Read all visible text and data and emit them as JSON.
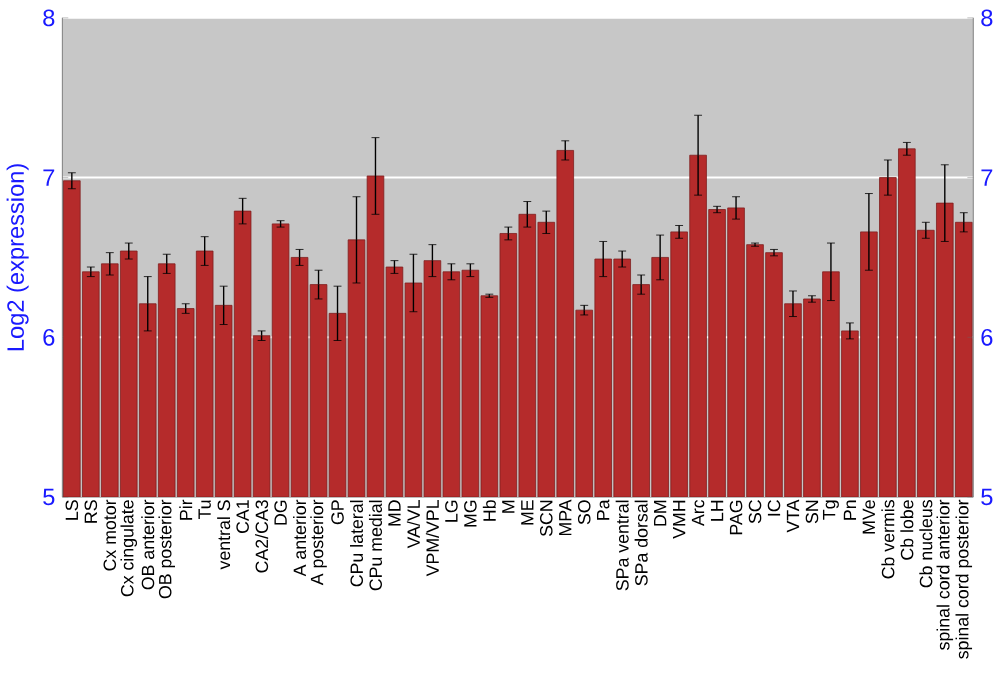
{
  "chart_data": {
    "type": "bar",
    "ylabel": "Log2 (expression)",
    "categories": [
      "LS",
      "RS",
      "Cx motor",
      "Cx cingulate",
      "OB anterior",
      "OB posterior",
      "Pir",
      "Tu",
      "ventral S",
      "CA1",
      "CA2/CA3",
      "DG",
      "A anterior",
      "A posterior",
      "GP",
      "CPu lateral",
      "CPu medial",
      "MD",
      "VA/VL",
      "VPM/VPL",
      "LG",
      "MG",
      "Hb",
      "M",
      "ME",
      "SCN",
      "MPA",
      "SO",
      "Pa",
      "SPa ventral",
      "SPa dorsal",
      "DM",
      "VMH",
      "Arc",
      "LH",
      "PAG",
      "SC",
      "IC",
      "VTA",
      "SN",
      "Tg",
      "Pn",
      "MVe",
      "Cb vermis",
      "Cb lobe",
      "Cb nucleus",
      "spinal cord anterior",
      "spinal cord posterior"
    ],
    "values": [
      6.98,
      6.41,
      6.46,
      6.54,
      6.21,
      6.46,
      6.18,
      6.54,
      6.2,
      6.79,
      6.01,
      6.71,
      6.5,
      6.33,
      6.15,
      6.61,
      7.01,
      6.44,
      6.34,
      6.48,
      6.41,
      6.42,
      6.26,
      6.65,
      6.77,
      6.72,
      7.17,
      6.17,
      6.49,
      6.49,
      6.33,
      6.5,
      6.66,
      7.14,
      6.8,
      6.81,
      6.58,
      6.53,
      6.21,
      6.24,
      6.41,
      6.04,
      6.66,
      7.0,
      7.18,
      6.67,
      6.84,
      6.72
    ],
    "errors": [
      0.05,
      0.03,
      0.07,
      0.05,
      0.17,
      0.06,
      0.03,
      0.09,
      0.12,
      0.08,
      0.03,
      0.02,
      0.05,
      0.09,
      0.17,
      0.27,
      0.24,
      0.04,
      0.18,
      0.1,
      0.05,
      0.04,
      0.01,
      0.04,
      0.08,
      0.07,
      0.06,
      0.03,
      0.11,
      0.05,
      0.06,
      0.14,
      0.04,
      0.25,
      0.02,
      0.07,
      0.01,
      0.02,
      0.08,
      0.02,
      0.18,
      0.05,
      0.24,
      0.11,
      0.04,
      0.05,
      0.24,
      0.06
    ],
    "color": "#b52b2b",
    "ylim": [
      5,
      8
    ],
    "yticks": [
      5,
      6,
      7,
      8
    ],
    "y2lim": [
      5,
      8
    ],
    "y2ticks": [
      5,
      6,
      7,
      8
    ],
    "grid": "y"
  }
}
